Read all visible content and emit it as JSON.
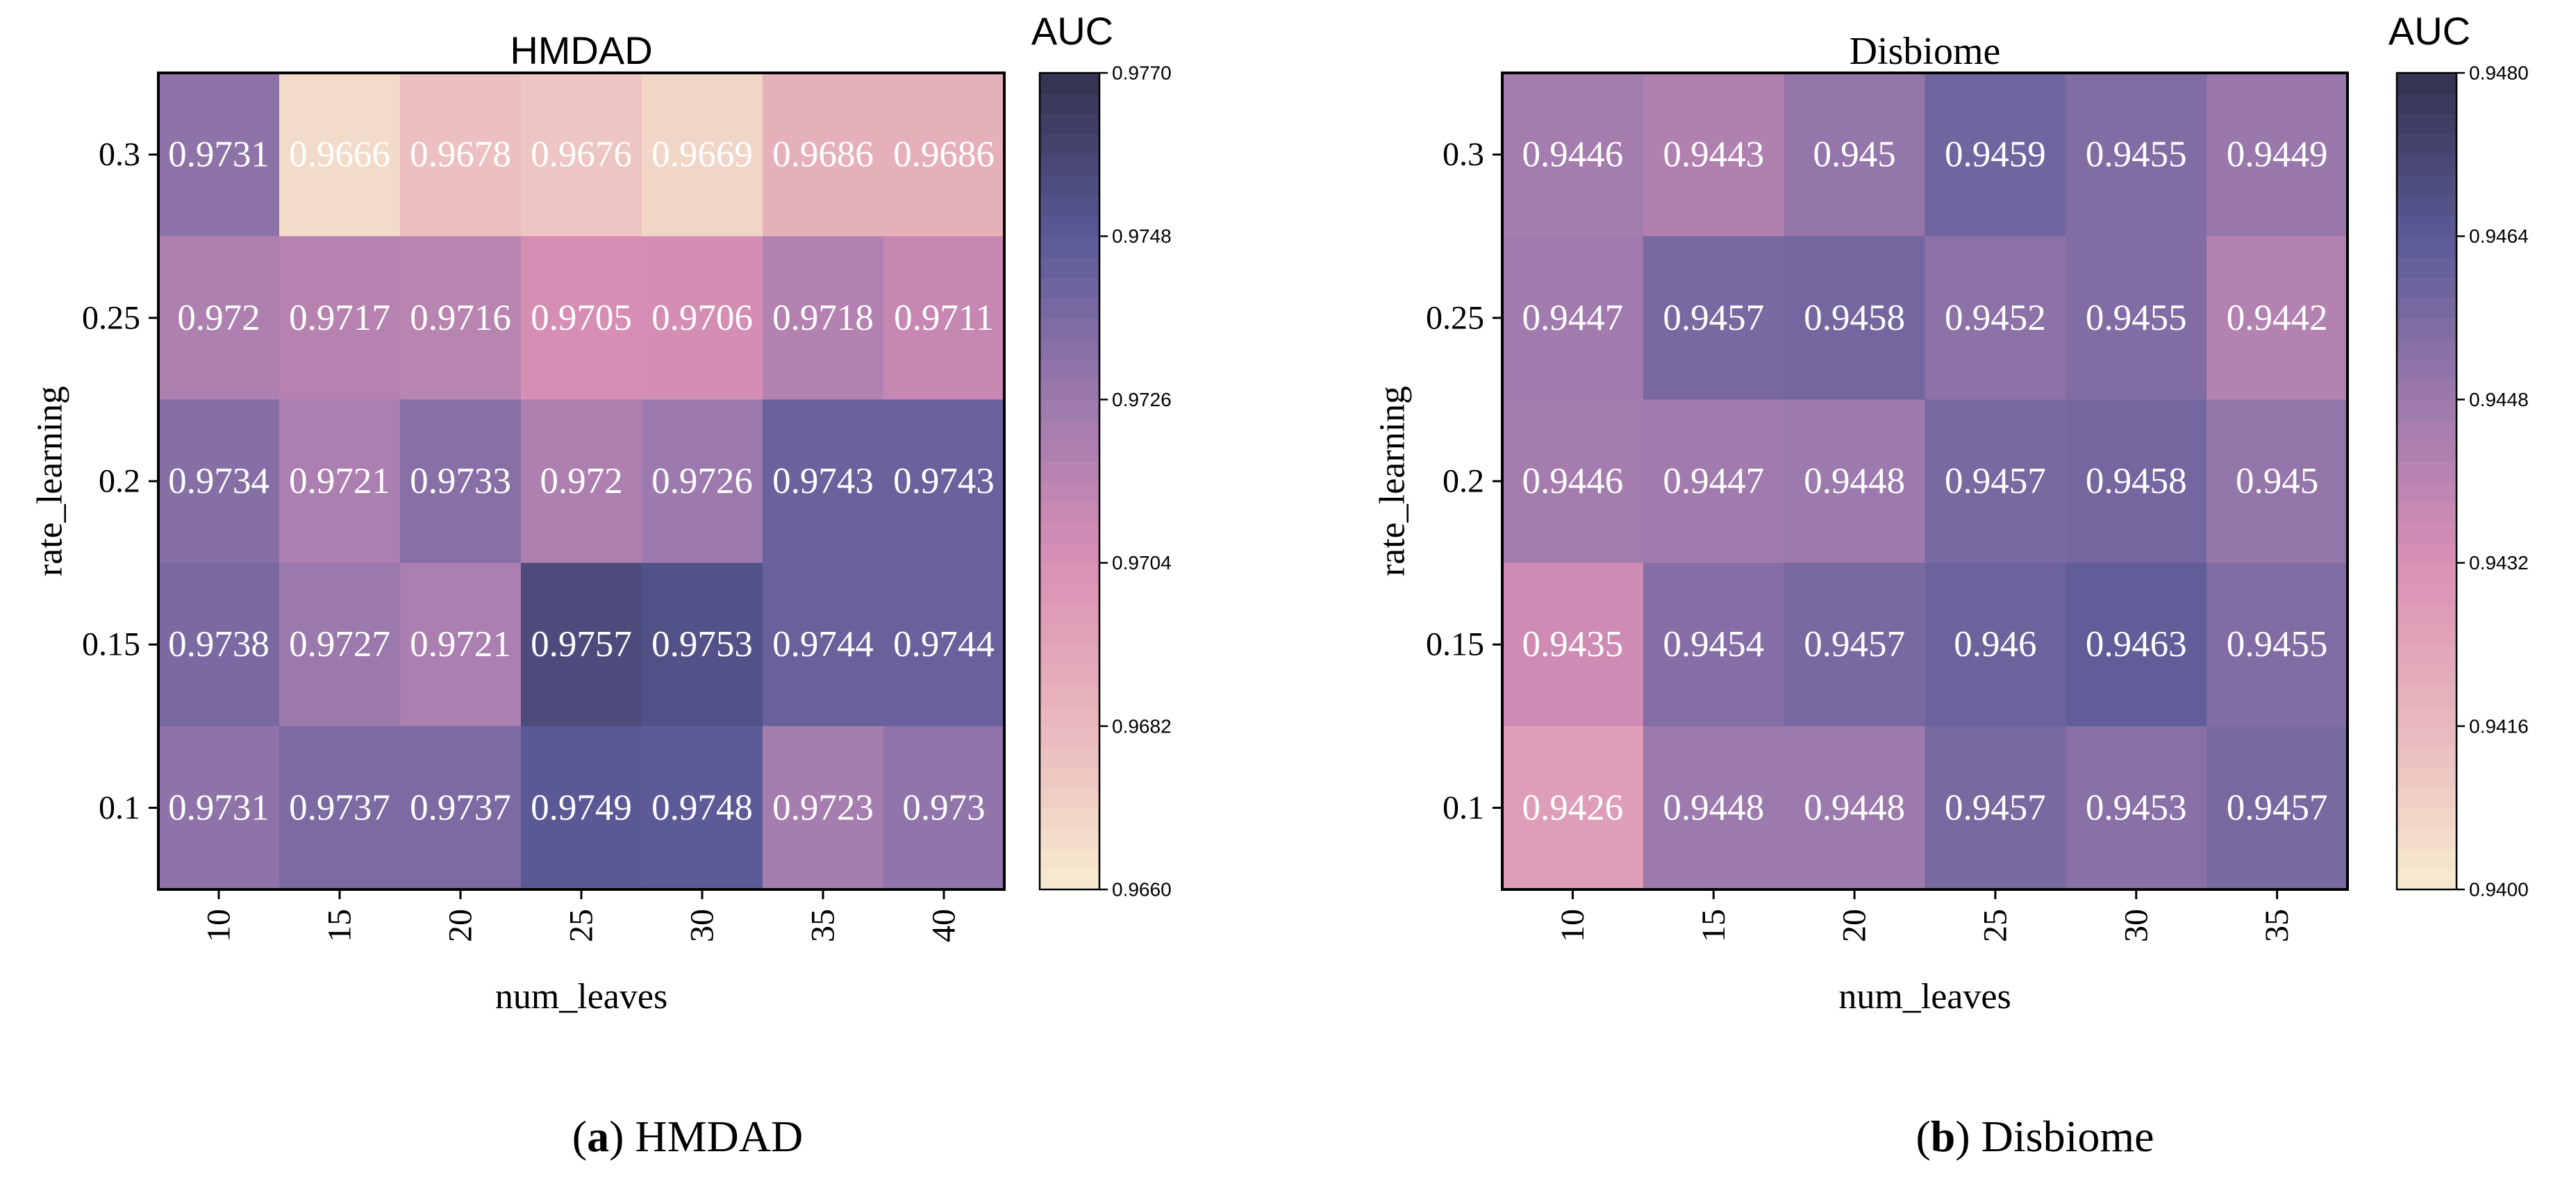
{
  "chart_data": [
    {
      "type": "heatmap",
      "title": "HMDAD",
      "colorbar_title": "AUC",
      "xlabel": "num_leaves",
      "ylabel": "rate_learning",
      "x": [
        "10",
        "15",
        "20",
        "25",
        "30",
        "35",
        "40"
      ],
      "y": [
        "0.3",
        "0.25",
        "0.2",
        "0.15",
        "0.1"
      ],
      "values": [
        [
          0.9731,
          0.9666,
          0.9678,
          0.9676,
          0.9669,
          0.9686,
          0.9686
        ],
        [
          0.972,
          0.9717,
          0.9716,
          0.9705,
          0.9706,
          0.9718,
          0.9711
        ],
        [
          0.9734,
          0.9721,
          0.9733,
          0.972,
          0.9726,
          0.9743,
          0.9743
        ],
        [
          0.9738,
          0.9727,
          0.9721,
          0.9757,
          0.9753,
          0.9744,
          0.9744
        ],
        [
          0.9731,
          0.9737,
          0.9737,
          0.9749,
          0.9748,
          0.9723,
          0.973
        ]
      ],
      "labels": [
        [
          "0.9731",
          "0.9666",
          "0.9678",
          "0.9676",
          "0.9669",
          "0.9686",
          "0.9686"
        ],
        [
          "0.972",
          "0.9717",
          "0.9716",
          "0.9705",
          "0.9706",
          "0.9718",
          "0.9711"
        ],
        [
          "0.9734",
          "0.9721",
          "0.9733",
          "0.972",
          "0.9726",
          "0.9743",
          "0.9743"
        ],
        [
          "0.9738",
          "0.9727",
          "0.9721",
          "0.9757",
          "0.9753",
          "0.9744",
          "0.9744"
        ],
        [
          "0.9731",
          "0.9737",
          "0.9737",
          "0.9749",
          "0.9748",
          "0.9723",
          "0.973"
        ]
      ],
      "vmin": 0.966,
      "vmax": 0.977,
      "colorbar_ticks": [
        "0.9660",
        "0.9682",
        "0.9704",
        "0.9726",
        "0.9748",
        "0.9770"
      ],
      "colorbar_tick_values": [
        0.966,
        0.9682,
        0.9704,
        0.9726,
        0.9748,
        0.977
      ],
      "caption_letter": "a",
      "caption_text": " HMDAD"
    },
    {
      "type": "heatmap",
      "title": "Disbiome",
      "colorbar_title": "AUC",
      "xlabel": "num_leaves",
      "ylabel": "rate_learning",
      "x": [
        "10",
        "15",
        "20",
        "25",
        "30",
        "35"
      ],
      "y": [
        "0.3",
        "0.25",
        "0.2",
        "0.15",
        "0.1"
      ],
      "values": [
        [
          0.9446,
          0.9443,
          0.945,
          0.9459,
          0.9455,
          0.9449
        ],
        [
          0.9447,
          0.9457,
          0.9458,
          0.9452,
          0.9455,
          0.9442
        ],
        [
          0.9446,
          0.9447,
          0.9448,
          0.9457,
          0.9458,
          0.945
        ],
        [
          0.9435,
          0.9454,
          0.9457,
          0.946,
          0.9463,
          0.9455
        ],
        [
          0.9426,
          0.9448,
          0.9448,
          0.9457,
          0.9453,
          0.9457
        ]
      ],
      "labels": [
        [
          "0.9446",
          "0.9443",
          "0.945",
          "0.9459",
          "0.9455",
          "0.9449"
        ],
        [
          "0.9447",
          "0.9457",
          "0.9458",
          "0.9452",
          "0.9455",
          "0.9442"
        ],
        [
          "0.9446",
          "0.9447",
          "0.9448",
          "0.9457",
          "0.9458",
          "0.945"
        ],
        [
          "0.9435",
          "0.9454",
          "0.9457",
          "0.946",
          "0.9463",
          "0.9455"
        ],
        [
          "0.9426",
          "0.9448",
          "0.9448",
          "0.9457",
          "0.9453",
          "0.9457"
        ]
      ],
      "vmin": 0.94,
      "vmax": 0.948,
      "colorbar_ticks": [
        "0.9400",
        "0.9416",
        "0.9432",
        "0.9448",
        "0.9464",
        "0.9480"
      ],
      "colorbar_tick_values": [
        0.94,
        0.9416,
        0.9432,
        0.9448,
        0.9464,
        0.948
      ],
      "caption_letter": "b",
      "caption_text": " Disbiome"
    }
  ],
  "colormap": [
    "#f7e9ce",
    "#e9b7bd",
    "#d98fb4",
    "#9d7aad",
    "#5c5b98",
    "#353452"
  ],
  "cell_text_color": "#ffffff"
}
